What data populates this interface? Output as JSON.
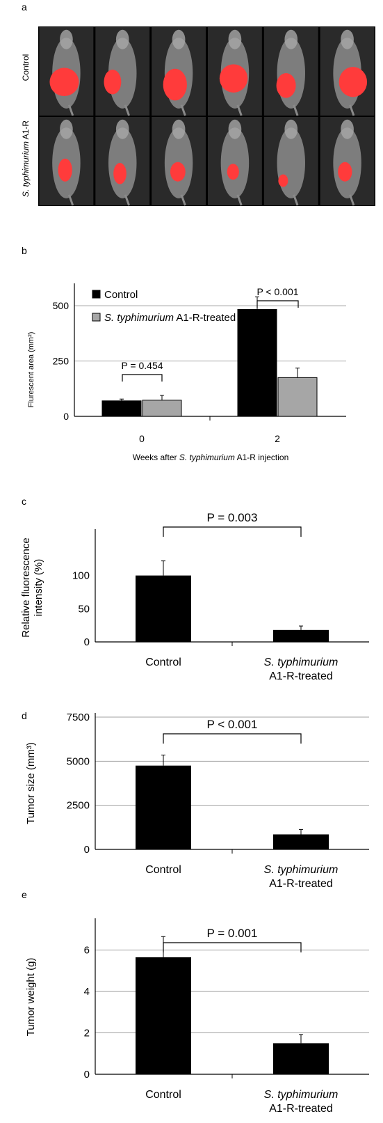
{
  "panel_a": {
    "letter": "a",
    "row_labels": {
      "control": "Control",
      "treated_italic": "S. typhimurium",
      "treated_rest": " A1-R"
    }
  },
  "chart_data": [
    {
      "panel": "b",
      "type": "bar",
      "categories": [
        "0",
        "2"
      ],
      "series": [
        {
          "name": "Control",
          "values": [
            70,
            483
          ],
          "errors": [
            8,
            57
          ],
          "color": "#000000"
        },
        {
          "name": "S. typhimurium A1-R-treated",
          "values": [
            73,
            175
          ],
          "errors": [
            22,
            43
          ],
          "color": "#a6a6a6"
        }
      ],
      "legend_italic": "S. typhimurium",
      "legend_rest": " A1-R-treated",
      "ylabel": "Flurescent area (mm²)",
      "xlabel_pre": "Weeks after ",
      "xlabel_italic": "S. typhimurium",
      "xlabel_post": " A1-R injection",
      "ylim": [
        0,
        560
      ],
      "yticks": [
        "0",
        "250",
        "500"
      ],
      "grid": true,
      "legend_position": "top-left",
      "annotations": [
        "P = 0.454",
        "P < 0.001"
      ]
    },
    {
      "panel": "c",
      "type": "bar",
      "categories": [
        "Control",
        "S. typhimurium A1-R-treated"
      ],
      "category_lines": [
        [
          "Control"
        ],
        [
          "S. typhimurium",
          "A1-R-treated"
        ]
      ],
      "values": [
        100,
        18
      ],
      "errors": [
        22,
        6
      ],
      "ylabel_lines": [
        "Relative fluorescence",
        "intensity (%)"
      ],
      "ylim": [
        0,
        130
      ],
      "yticks": [
        "0",
        "50",
        "100"
      ],
      "grid": false,
      "annotation": "P = 0.003"
    },
    {
      "panel": "d",
      "type": "bar",
      "categories": [
        "Control",
        "S. typhimurium A1-R-treated"
      ],
      "category_lines": [
        [
          "Control"
        ],
        [
          "S. typhimurium",
          "A1-R-treated"
        ]
      ],
      "values": [
        4750,
        850
      ],
      "errors": [
        600,
        280
      ],
      "ylabel": "Tumor size (mm³)",
      "ylim": [
        0,
        7500
      ],
      "yticks": [
        "0",
        "2500",
        "5000",
        "7500"
      ],
      "grid": true,
      "annotation": "P < 0.001"
    },
    {
      "panel": "e",
      "type": "bar",
      "categories": [
        "Control",
        "S. typhimurium A1-R-treated"
      ],
      "category_lines": [
        [
          "Control"
        ],
        [
          "S. typhimurium",
          "A1-R-treated"
        ]
      ],
      "values": [
        5.65,
        1.5
      ],
      "errors": [
        1.0,
        0.42
      ],
      "ylabel": "Tumor weight (g)",
      "ylim": [
        0,
        7.5
      ],
      "yticks": [
        "0",
        "2",
        "4",
        "6"
      ],
      "grid": true,
      "annotation": "P = 0.001"
    }
  ],
  "panel_letters": {
    "b": "b",
    "c": "c",
    "d": "d",
    "e": "e"
  }
}
